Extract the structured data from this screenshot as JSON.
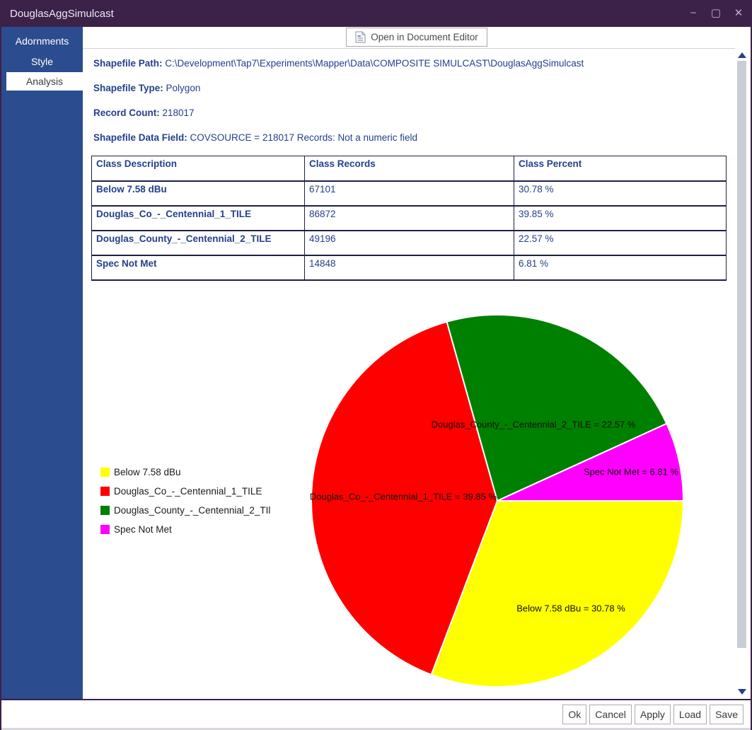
{
  "window": {
    "title": "DouglasAggSimulcast",
    "controls": {
      "minimize": "−",
      "maximize": "▢",
      "close": "✕"
    }
  },
  "sidebar": {
    "items": [
      {
        "label": "Adornments",
        "selected": false
      },
      {
        "label": "Style",
        "selected": false
      },
      {
        "label": "Analysis",
        "selected": true
      }
    ]
  },
  "toolbar": {
    "open_editor_label": "Open in Document Editor"
  },
  "info": {
    "path_label": "Shapefile Path:",
    "path_value": "C:\\Development\\Tap7\\Experiments\\Mapper\\Data\\COMPOSITE SIMULCAST\\DouglasAggSimulcast",
    "type_label": "Shapefile Type:",
    "type_value": "Polygon",
    "count_label": "Record Count:",
    "count_value": "218017",
    "field_label": "Shapefile Data Field:",
    "field_value": "COVSOURCE = 218017 Records: Not a numeric field"
  },
  "table": {
    "headers": [
      "Class Description",
      "Class Records",
      "Class Percent"
    ],
    "rows": [
      [
        "Below 7.58 dBu",
        "67101",
        "30.78 %"
      ],
      [
        "Douglas_Co_-_Centennial_1_TILE",
        "86872",
        "39.85 %"
      ],
      [
        "Douglas_County_-_Centennial_2_TILE",
        "49196",
        "22.57 %"
      ],
      [
        "Spec Not Met",
        "14848",
        "6.81 %"
      ]
    ]
  },
  "chart_data": {
    "type": "pie",
    "title": "",
    "categories": [
      "Below 7.58 dBu",
      "Douglas_Co_-_Centennial_1_TILE",
      "Douglas_County_-_Centennial_2_TILE",
      "Spec Not Met"
    ],
    "values": [
      30.78,
      39.85,
      22.57,
      6.81
    ],
    "records": [
      67101,
      86872,
      49196,
      14848
    ],
    "colors": [
      "#FFFF00",
      "#FF0000",
      "#008000",
      "#FF00FF"
    ],
    "slice_labels": [
      "Below 7.58 dBu = 30.78 %",
      "Douglas_Co_-_Centennial_1_TILE = 39.85 %",
      "Douglas_County_-_Centennial_2_TILE = 22.57 %",
      "Spec Not Met = 6.81 %"
    ],
    "start_angle_deg": 0,
    "direction": "clockwise",
    "legend_position": "left"
  },
  "legend": {
    "items": [
      {
        "label": "Below 7.58 dBu"
      },
      {
        "label": "Douglas_Co_-_Centennial_1_TILE"
      },
      {
        "label": "Douglas_County_-_Centennial_2_TIl"
      },
      {
        "label": "Spec Not Met"
      }
    ]
  },
  "footer": {
    "buttons": [
      "Ok",
      "Cancel",
      "Apply",
      "Load",
      "Save"
    ]
  }
}
